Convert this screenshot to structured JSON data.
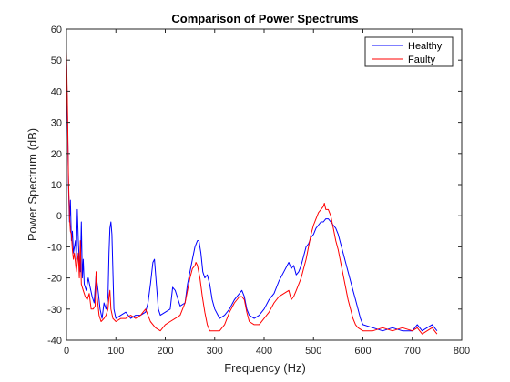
{
  "chart_data": {
    "type": "line",
    "title": "Comparison of Power Spectrums",
    "xlabel": "Frequency (Hz)",
    "ylabel": "Power Spectrum (dB)",
    "xlim": [
      0,
      800
    ],
    "ylim": [
      -40,
      60
    ],
    "xticks": [
      0,
      100,
      200,
      300,
      400,
      500,
      600,
      700,
      800
    ],
    "yticks": [
      -40,
      -30,
      -20,
      -10,
      0,
      10,
      20,
      30,
      40,
      50,
      60
    ],
    "grid": false,
    "legend_position": "top-right",
    "colors": {
      "healthy": "#0000ff",
      "faulty": "#ff0000",
      "axes": "#262626"
    },
    "series": [
      {
        "name": "Healthy",
        "color": "#0000ff",
        "points": [
          [
            0,
            50
          ],
          [
            2,
            32
          ],
          [
            4,
            10
          ],
          [
            6,
            -2
          ],
          [
            8,
            5
          ],
          [
            10,
            -8
          ],
          [
            12,
            -5
          ],
          [
            14,
            -12
          ],
          [
            16,
            -10
          ],
          [
            18,
            -8
          ],
          [
            20,
            -14
          ],
          [
            22,
            2
          ],
          [
            24,
            -8
          ],
          [
            26,
            -15
          ],
          [
            28,
            -18
          ],
          [
            30,
            -2
          ],
          [
            32,
            -20
          ],
          [
            34,
            -14
          ],
          [
            36,
            -22
          ],
          [
            40,
            -24
          ],
          [
            44,
            -20
          ],
          [
            48,
            -23
          ],
          [
            52,
            -26
          ],
          [
            56,
            -28
          ],
          [
            60,
            -19
          ],
          [
            64,
            -24
          ],
          [
            68,
            -30
          ],
          [
            72,
            -33
          ],
          [
            76,
            -28
          ],
          [
            80,
            -30
          ],
          [
            84,
            -26
          ],
          [
            86,
            -12
          ],
          [
            88,
            -4
          ],
          [
            90,
            -2
          ],
          [
            92,
            -6
          ],
          [
            94,
            -18
          ],
          [
            96,
            -30
          ],
          [
            100,
            -33
          ],
          [
            110,
            -32
          ],
          [
            120,
            -31
          ],
          [
            130,
            -33
          ],
          [
            140,
            -32
          ],
          [
            150,
            -32
          ],
          [
            160,
            -31
          ],
          [
            165,
            -28
          ],
          [
            170,
            -22
          ],
          [
            175,
            -15
          ],
          [
            178,
            -14
          ],
          [
            182,
            -22
          ],
          [
            186,
            -30
          ],
          [
            190,
            -32
          ],
          [
            200,
            -31
          ],
          [
            210,
            -30
          ],
          [
            215,
            -23
          ],
          [
            220,
            -24
          ],
          [
            230,
            -29
          ],
          [
            240,
            -28
          ],
          [
            245,
            -22
          ],
          [
            250,
            -18
          ],
          [
            255,
            -14
          ],
          [
            260,
            -10
          ],
          [
            265,
            -8
          ],
          [
            268,
            -8
          ],
          [
            272,
            -12
          ],
          [
            276,
            -18
          ],
          [
            280,
            -20
          ],
          [
            285,
            -19
          ],
          [
            290,
            -22
          ],
          [
            295,
            -27
          ],
          [
            300,
            -30
          ],
          [
            310,
            -33
          ],
          [
            320,
            -32
          ],
          [
            330,
            -30
          ],
          [
            340,
            -27
          ],
          [
            350,
            -25
          ],
          [
            355,
            -24
          ],
          [
            360,
            -26
          ],
          [
            365,
            -30
          ],
          [
            370,
            -32
          ],
          [
            380,
            -33
          ],
          [
            390,
            -32
          ],
          [
            400,
            -30
          ],
          [
            410,
            -27
          ],
          [
            420,
            -25
          ],
          [
            430,
            -21
          ],
          [
            440,
            -18
          ],
          [
            450,
            -15
          ],
          [
            455,
            -17
          ],
          [
            460,
            -16
          ],
          [
            465,
            -19
          ],
          [
            470,
            -18
          ],
          [
            475,
            -16
          ],
          [
            480,
            -13
          ],
          [
            485,
            -10
          ],
          [
            490,
            -9
          ],
          [
            495,
            -7
          ],
          [
            500,
            -6
          ],
          [
            505,
            -4
          ],
          [
            510,
            -3
          ],
          [
            515,
            -2
          ],
          [
            520,
            -2
          ],
          [
            525,
            -1
          ],
          [
            530,
            -1
          ],
          [
            535,
            -2
          ],
          [
            540,
            -3
          ],
          [
            545,
            -4
          ],
          [
            550,
            -6
          ],
          [
            555,
            -9
          ],
          [
            560,
            -12
          ],
          [
            565,
            -15
          ],
          [
            570,
            -18
          ],
          [
            575,
            -21
          ],
          [
            580,
            -24
          ],
          [
            585,
            -27
          ],
          [
            590,
            -30
          ],
          [
            595,
            -33
          ],
          [
            600,
            -35
          ],
          [
            620,
            -36
          ],
          [
            640,
            -37
          ],
          [
            660,
            -36
          ],
          [
            680,
            -37
          ],
          [
            700,
            -37
          ],
          [
            710,
            -35
          ],
          [
            720,
            -37
          ],
          [
            730,
            -36
          ],
          [
            740,
            -35
          ],
          [
            750,
            -37
          ]
        ]
      },
      {
        "name": "Faulty",
        "color": "#ff0000",
        "points": [
          [
            0,
            53
          ],
          [
            2,
            35
          ],
          [
            4,
            12
          ],
          [
            6,
            0
          ],
          [
            8,
            -5
          ],
          [
            10,
            -6
          ],
          [
            12,
            -11
          ],
          [
            14,
            -14
          ],
          [
            16,
            -12
          ],
          [
            18,
            -15
          ],
          [
            20,
            -18
          ],
          [
            24,
            -12
          ],
          [
            26,
            -20
          ],
          [
            28,
            -8
          ],
          [
            30,
            -22
          ],
          [
            34,
            -24
          ],
          [
            38,
            -26
          ],
          [
            42,
            -27
          ],
          [
            46,
            -25
          ],
          [
            50,
            -30
          ],
          [
            54,
            -30
          ],
          [
            58,
            -29
          ],
          [
            60,
            -18
          ],
          [
            62,
            -26
          ],
          [
            66,
            -32
          ],
          [
            70,
            -34
          ],
          [
            76,
            -33
          ],
          [
            80,
            -32
          ],
          [
            84,
            -30
          ],
          [
            86,
            -26
          ],
          [
            88,
            -24
          ],
          [
            90,
            -30
          ],
          [
            94,
            -33
          ],
          [
            100,
            -34
          ],
          [
            110,
            -33
          ],
          [
            120,
            -33
          ],
          [
            130,
            -32
          ],
          [
            140,
            -33
          ],
          [
            150,
            -32
          ],
          [
            155,
            -31
          ],
          [
            160,
            -30
          ],
          [
            165,
            -32
          ],
          [
            170,
            -34
          ],
          [
            180,
            -36
          ],
          [
            190,
            -37
          ],
          [
            200,
            -35
          ],
          [
            210,
            -34
          ],
          [
            220,
            -33
          ],
          [
            230,
            -32
          ],
          [
            240,
            -28
          ],
          [
            245,
            -24
          ],
          [
            250,
            -20
          ],
          [
            255,
            -17
          ],
          [
            260,
            -16
          ],
          [
            262,
            -15
          ],
          [
            265,
            -16
          ],
          [
            270,
            -20
          ],
          [
            275,
            -26
          ],
          [
            280,
            -31
          ],
          [
            285,
            -35
          ],
          [
            290,
            -37
          ],
          [
            300,
            -37
          ],
          [
            310,
            -37
          ],
          [
            320,
            -35
          ],
          [
            330,
            -31
          ],
          [
            340,
            -28
          ],
          [
            345,
            -27
          ],
          [
            350,
            -26
          ],
          [
            355,
            -26
          ],
          [
            360,
            -27
          ],
          [
            365,
            -31
          ],
          [
            370,
            -34
          ],
          [
            380,
            -35
          ],
          [
            390,
            -35
          ],
          [
            400,
            -33
          ],
          [
            410,
            -31
          ],
          [
            420,
            -28
          ],
          [
            430,
            -26
          ],
          [
            440,
            -25
          ],
          [
            450,
            -24
          ],
          [
            455,
            -27
          ],
          [
            460,
            -26
          ],
          [
            465,
            -24
          ],
          [
            470,
            -22
          ],
          [
            475,
            -20
          ],
          [
            480,
            -17
          ],
          [
            485,
            -14
          ],
          [
            490,
            -10
          ],
          [
            495,
            -6
          ],
          [
            500,
            -3
          ],
          [
            505,
            -1
          ],
          [
            510,
            1
          ],
          [
            515,
            2
          ],
          [
            520,
            3
          ],
          [
            522,
            4
          ],
          [
            525,
            2
          ],
          [
            530,
            2
          ],
          [
            535,
            0
          ],
          [
            540,
            -4
          ],
          [
            545,
            -8
          ],
          [
            550,
            -11
          ],
          [
            555,
            -15
          ],
          [
            560,
            -19
          ],
          [
            565,
            -23
          ],
          [
            570,
            -27
          ],
          [
            575,
            -30
          ],
          [
            580,
            -33
          ],
          [
            585,
            -35
          ],
          [
            590,
            -36
          ],
          [
            600,
            -37
          ],
          [
            620,
            -37
          ],
          [
            640,
            -36
          ],
          [
            660,
            -37
          ],
          [
            680,
            -36
          ],
          [
            700,
            -37
          ],
          [
            710,
            -36
          ],
          [
            720,
            -38
          ],
          [
            730,
            -37
          ],
          [
            740,
            -36
          ],
          [
            750,
            -38
          ]
        ]
      }
    ]
  }
}
